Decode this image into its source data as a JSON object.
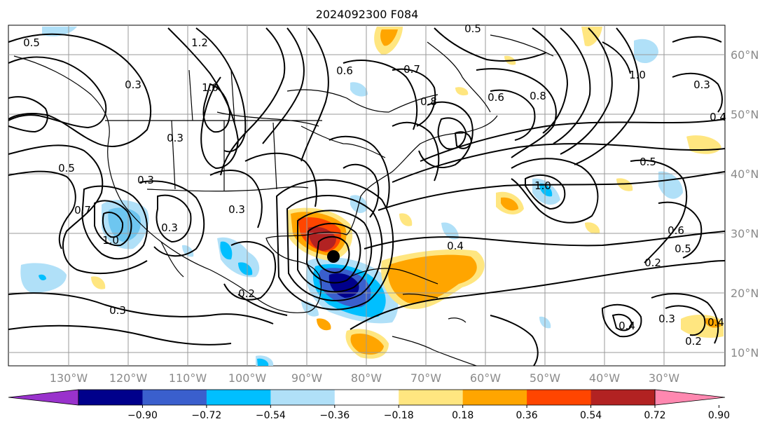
{
  "title": "2024092300 F084",
  "lon_labels": [
    "130°W",
    "120°W",
    "110°W",
    "100°W",
    "90°W",
    "80°W",
    "70°W",
    "60°W",
    "50°W",
    "40°W",
    "30°W"
  ],
  "lat_labels": [
    "60°N",
    "50°N",
    "40°N",
    "30°N",
    "20°N",
    "10°N"
  ],
  "colorbar": {
    "ticks": [
      "−0.90",
      "−0.72",
      "−0.54",
      "−0.36",
      "−0.18",
      "0.18",
      "0.36",
      "0.54",
      "0.72",
      "0.90"
    ],
    "colors": [
      "#9932cc",
      "#00008b",
      "#3a5fcd",
      "#00bfff",
      "#b0e0f8",
      "#ffffff",
      "#ffe680",
      "#ffa500",
      "#ff4500",
      "#b22222",
      "#ff88b0"
    ]
  },
  "contour_labels": [
    "0.5",
    "1.2",
    "0.3",
    "1.0",
    "0.3",
    "0.3",
    "0.5",
    "0.3",
    "1.0",
    "0.7",
    "0.3",
    "0.2",
    "0.3",
    "0.6",
    "0.7",
    "0.8",
    "0.6",
    "0.8",
    "1.0",
    "0.3",
    "0.4",
    "0.5",
    "0.6",
    "0.5",
    "0.2",
    "0.4",
    "0.3",
    "0.4",
    "0.2",
    "0.4",
    "0.5",
    "1.0"
  ],
  "colors": {
    "land_outline": "#000000",
    "grid": "#9a9a9a",
    "storm_marker": "#000000"
  }
}
